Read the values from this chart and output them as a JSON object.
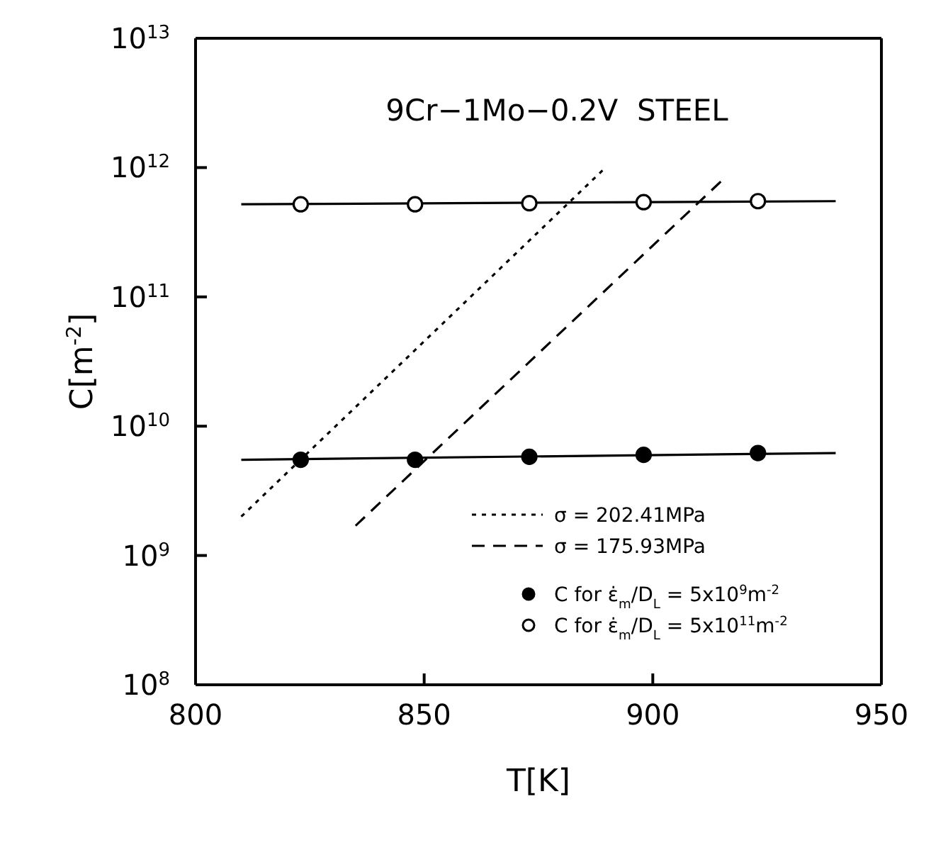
{
  "chart_data": {
    "type": "line",
    "title": "9Cr−1Mo−0.2V  STEEL",
    "xlabel": "T[K]",
    "ylabel": "C[m$^{-2}$]",
    "xlim": [
      800,
      950
    ],
    "xticks": [
      800,
      850,
      900,
      950
    ],
    "ylim": [
      100000000.0,
      10000000000000.0
    ],
    "yticks": [
      {
        "value": 100000000.0,
        "label": "10$^{8}$"
      },
      {
        "value": 1000000000.0,
        "label": "10$^{9}$"
      },
      {
        "value": 10000000000.0,
        "label": "10$^{10}$"
      },
      {
        "value": 100000000000.0,
        "label": "10$^{11}$"
      },
      {
        "value": 1000000000000.0,
        "label": "10$^{12}$"
      },
      {
        "value": 10000000000000.0,
        "label": "10$^{13}$"
      }
    ],
    "log": "y",
    "grid": false,
    "legend": "bottom right",
    "series": [
      {
        "color": "#000000",
        "line_style": "dotted",
        "name": "σ  =  202.41MPa",
        "x": [
          810,
          889
        ],
        "values": [
          2000000000.0,
          950000000000.0
        ]
      },
      {
        "color": "#000000",
        "line_style": "dashed",
        "name": "σ  =  175.93MPa",
        "x": [
          835,
          916
        ],
        "values": [
          1700000000.0,
          850000000000.0
        ]
      },
      {
        "type": "scatter",
        "color": "#000000",
        "marker": "circle",
        "name": "C for ε̇$_{m}$/D$_{L}$  =  5x10$^{9}$m$^{-2}$",
        "x": [
          823,
          848,
          873,
          898,
          923
        ],
        "values": [
          5500000000.0,
          5500000000.0,
          5800000000.0,
          6000000000.0,
          6200000000.0
        ]
      },
      {
        "type": "scatter",
        "color": "#ffffff",
        "marker": "circle",
        "name": "C for ε̇$_{m}$/D$_{L}$  =  5x10$^{11}$m$^{-2}$",
        "x": [
          823,
          848,
          873,
          898,
          923
        ],
        "values": [
          520000000000.0,
          520000000000.0,
          530000000000.0,
          540000000000.0,
          550000000000.0
        ]
      },
      {
        "color": "#000000",
        "line_style": "solid",
        "x": [
          810,
          940
        ],
        "values": [
          5500000000.0,
          6200000000.0
        ]
      },
      {
        "color": "#000000",
        "line_style": "solid",
        "x": [
          810,
          940
        ],
        "values": [
          520000000000.0,
          550000000000.0
        ]
      }
    ]
  }
}
